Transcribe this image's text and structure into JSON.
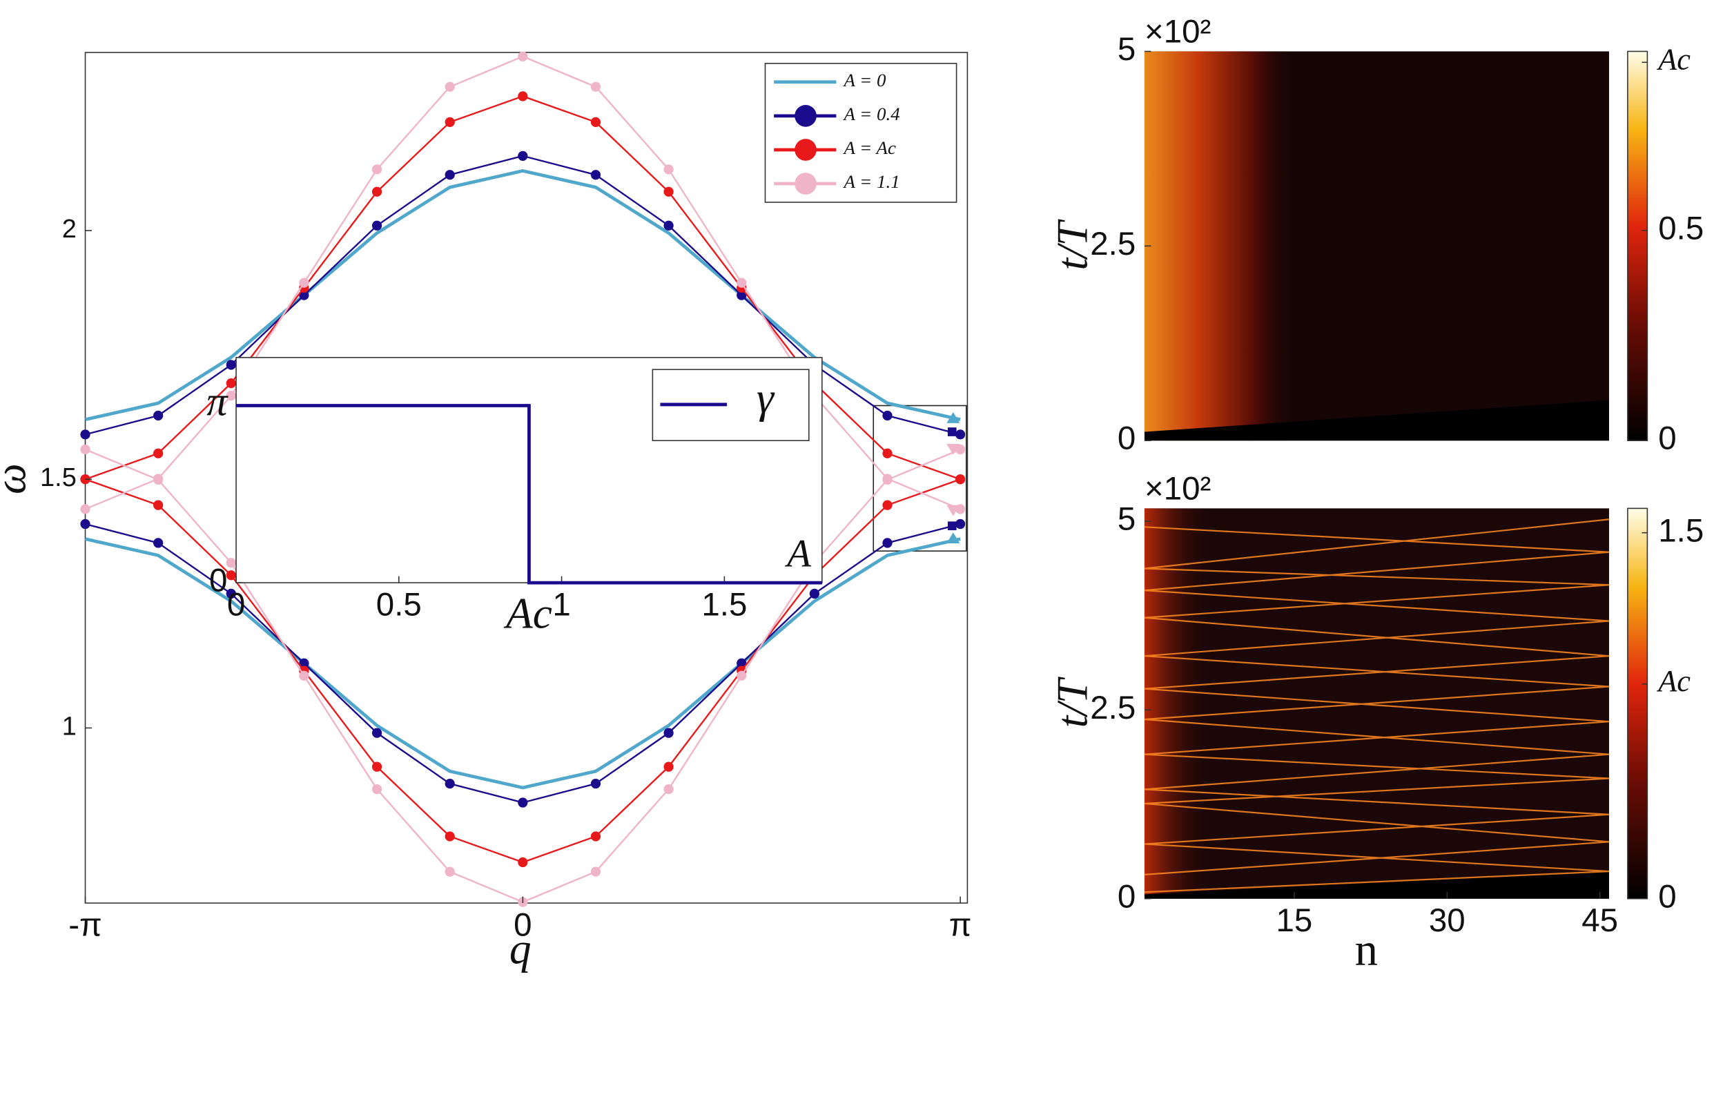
{
  "chart_data": [
    {
      "type": "line",
      "x_label": "q",
      "y_label": "ω",
      "x": [
        -3.1416,
        -2.618,
        -2.0944,
        -1.5708,
        -1.0472,
        -0.5236,
        0,
        0.5236,
        1.0472,
        1.5708,
        2.0944,
        2.618,
        3.1416
      ],
      "series": [
        {
          "name": "A = 0",
          "color": "#4fa8cc",
          "markers": false,
          "values": [
            1.62,
            1.653,
            1.745,
            1.87,
            1.995,
            2.087,
            2.12,
            2.087,
            1.995,
            1.87,
            1.745,
            1.653,
            1.62
          ],
          "lower_values": [
            1.38,
            1.347,
            1.255,
            1.13,
            1.005,
            0.913,
            0.88,
            0.913,
            1.005,
            1.13,
            1.255,
            1.347,
            1.38
          ]
        },
        {
          "name": "A = 0.4",
          "color": "#1a0a8c",
          "markers": true,
          "values": [
            1.59,
            1.628,
            1.73,
            1.87,
            2.01,
            2.112,
            2.15,
            2.112,
            2.01,
            1.87,
            1.73,
            1.628,
            1.59
          ],
          "lower_values": [
            1.41,
            1.372,
            1.27,
            1.13,
            0.99,
            0.888,
            0.85,
            0.888,
            0.99,
            1.13,
            1.27,
            1.372,
            1.41
          ]
        },
        {
          "name": "A = Ac",
          "color": "#e8191a",
          "markers": true,
          "values": [
            1.5,
            1.552,
            1.693,
            1.885,
            2.078,
            2.218,
            2.27,
            2.218,
            2.078,
            1.885,
            1.693,
            1.552,
            1.5
          ],
          "lower_values": [
            1.5,
            1.448,
            1.307,
            1.115,
            0.922,
            0.782,
            0.73,
            0.782,
            0.922,
            1.115,
            1.307,
            1.448,
            1.5
          ]
        },
        {
          "name": "A = 1.1",
          "color": "#f0b4c8",
          "markers": true,
          "values": [
            1.44,
            1.501,
            1.668,
            1.895,
            2.123,
            2.289,
            2.35,
            2.289,
            2.123,
            1.895,
            1.668,
            1.501,
            1.44
          ],
          "lower_values": [
            1.56,
            1.499,
            1.332,
            1.105,
            0.877,
            0.711,
            0.65,
            0.711,
            0.877,
            1.105,
            1.332,
            1.499,
            1.56
          ]
        }
      ],
      "xlim": [
        -3.1416,
        3.1925
      ],
      "xticks": [
        {
          "value": -3.1416,
          "label": "-π"
        },
        0,
        {
          "value": 3.1416,
          "label": "π"
        }
      ],
      "ylim": [
        0.648,
        2.358
      ],
      "yticks": [
        1,
        1.5,
        2
      ],
      "legend": "upper right"
    },
    {
      "type": "line",
      "x_label": "A",
      "x": [
        0,
        0.9,
        0.9,
        1.8
      ],
      "series": [
        {
          "name": "γ",
          "color": "#1a0a8c",
          "values": [
            3.1416,
            3.1416,
            0,
            0
          ]
        }
      ],
      "xlim": [
        0,
        1.8
      ],
      "xticks": [
        0,
        0.5,
        {
          "value": 0.9,
          "label": "Ac"
        },
        1,
        1.5
      ],
      "ylim": [
        0,
        3.995
      ],
      "yticks": [
        0,
        {
          "value": 3.1416,
          "label": "π"
        }
      ],
      "legend": "upper right"
    },
    {
      "type": "heatmap",
      "y_label": "t/T",
      "y_multiplier": "×10²",
      "xlim": [
        0.3,
        45.9
      ],
      "ylim": [
        0,
        5
      ],
      "yticks": [
        0,
        2.5,
        5
      ],
      "clim": [
        0,
        0.926
      ],
      "cticks": [
        0,
        0.5,
        {
          "value": 0.9,
          "label": "Ac"
        }
      ]
    },
    {
      "type": "heatmap",
      "y_label": "t/T",
      "x_label": "n",
      "y_multiplier": "×10²",
      "xlim": [
        0.3,
        45.9
      ],
      "xticks": [
        15,
        30,
        45
      ],
      "ylim": [
        0,
        5.17
      ],
      "yticks": [
        0,
        2.5,
        5
      ],
      "clim": [
        0,
        1.6
      ],
      "cticks": [
        0,
        {
          "value": 0.88,
          "label": "Ac"
        },
        1.5
      ]
    }
  ]
}
